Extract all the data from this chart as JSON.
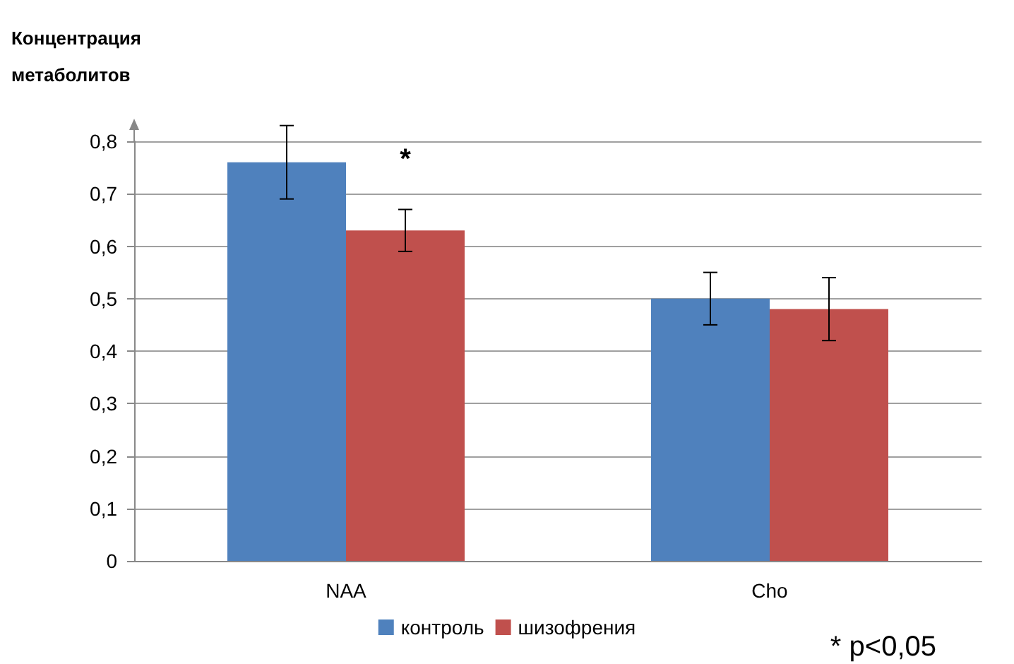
{
  "chart_data": {
    "type": "bar",
    "ylabel": "Концентрация\nметаболитов",
    "categories": [
      "NAA",
      "Cho"
    ],
    "series": [
      {
        "name": "контроль",
        "color": "#4f81bd",
        "values": [
          0.76,
          0.5
        ],
        "errors": [
          0.07,
          0.05
        ]
      },
      {
        "name": "шизофрения",
        "color": "#c0504d",
        "values": [
          0.63,
          0.48
        ],
        "errors": [
          0.04,
          0.06
        ]
      }
    ],
    "ylim": [
      0,
      0.8
    ],
    "yticks": [
      0,
      {
        "value": 0.1,
        "label": "0,1"
      },
      {
        "value": 0.2,
        "label": "0,2"
      },
      {
        "value": 0.3,
        "label": "0,3"
      },
      {
        "value": 0.4,
        "label": "0,4"
      },
      {
        "value": 0.5,
        "label": "0,5"
      },
      {
        "value": 0.6,
        "label": "0,6"
      },
      {
        "value": 0.7,
        "label": "0,7"
      },
      {
        "value": 0.8,
        "label": "0,8"
      }
    ],
    "grid": "y",
    "legend": "bottom",
    "annotations": [
      {
        "text": "*",
        "x": "NAA",
        "y": 0.76
      },
      "* p<0,05"
    ]
  }
}
